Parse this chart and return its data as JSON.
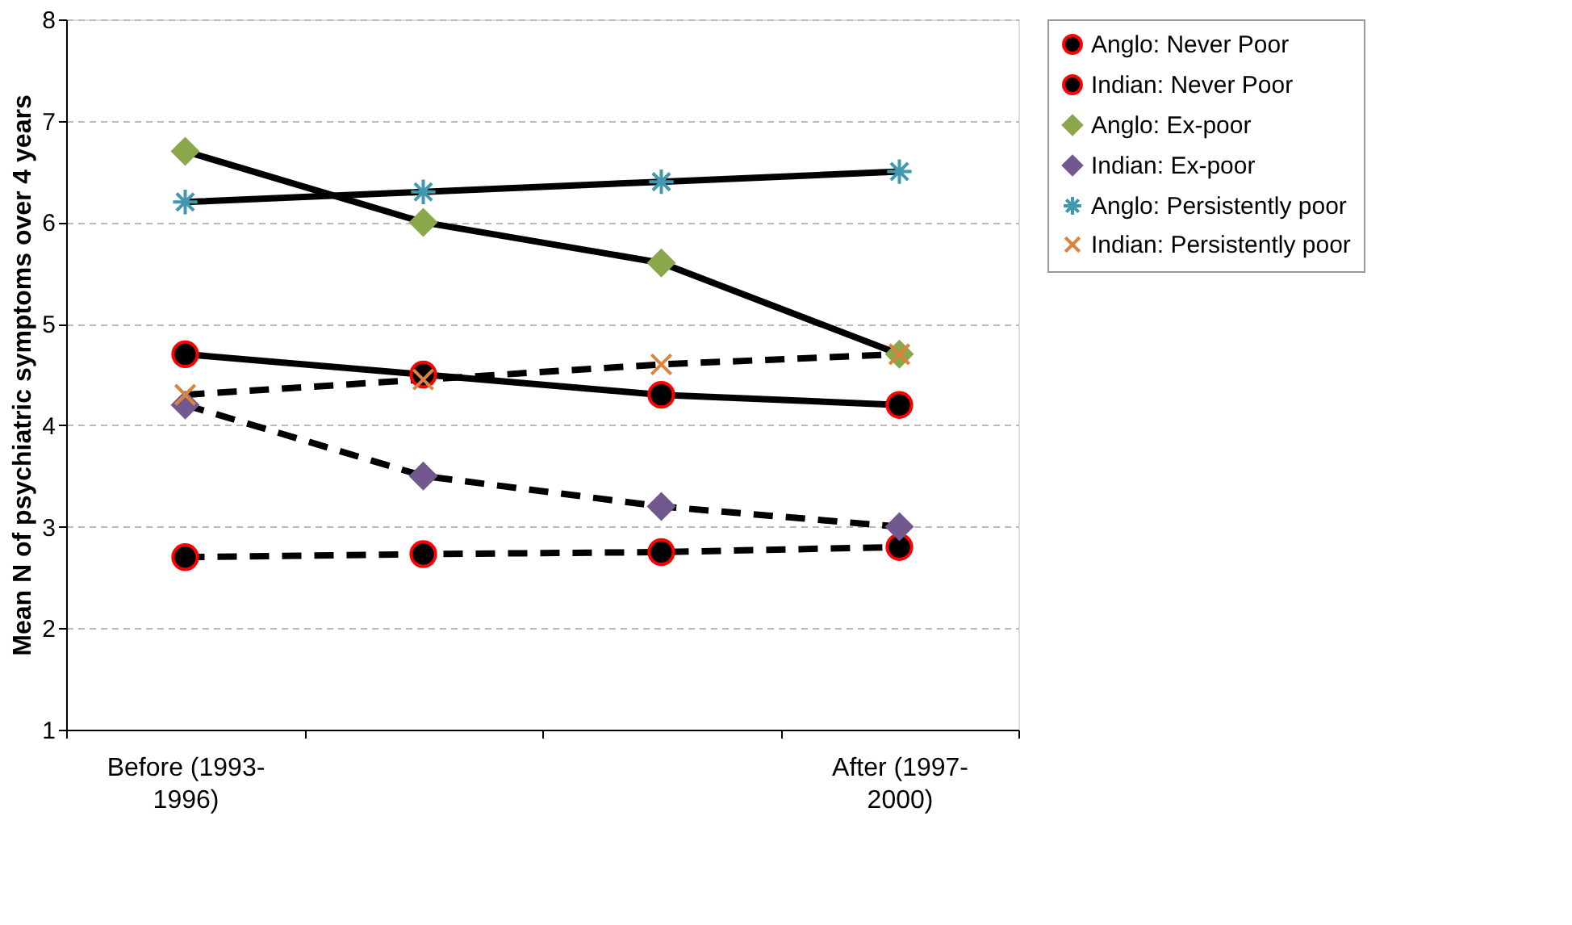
{
  "chart_data": {
    "type": "line",
    "ylabel": "Mean N of psychiatric symptoms over 4 years",
    "categories": [
      "Before (1993-1996)",
      null,
      null,
      "After (1997-2000)"
    ],
    "ylim": [
      1,
      8
    ],
    "yticks": [
      1,
      2,
      3,
      4,
      5,
      6,
      7,
      8
    ],
    "grid": "y",
    "legend": "right",
    "series": [
      {
        "name": "Anglo: Never Poor",
        "color": "#000000",
        "marker": "circle",
        "line_style": "solid",
        "values": [
          4.7,
          4.5,
          4.3,
          4.2
        ]
      },
      {
        "name": "Indian: Never Poor",
        "color": "#000000",
        "marker": "circle",
        "line_style": "dashed",
        "values": [
          2.7,
          2.73,
          2.75,
          2.8
        ]
      },
      {
        "name": "Anglo: Ex-poor",
        "color": "#8aa84b",
        "marker": "diamond",
        "line_style": "solid",
        "values": [
          6.7,
          6.0,
          5.6,
          4.7
        ]
      },
      {
        "name": "Indian: Ex-poor",
        "color": "#71588f",
        "marker": "diamond",
        "line_style": "dashed",
        "values": [
          4.2,
          3.5,
          3.2,
          3.0
        ]
      },
      {
        "name": "Anglo: Persistently poor",
        "color": "#4198af",
        "marker": "cross",
        "line_style": "solid",
        "values": [
          6.2,
          6.3,
          6.4,
          6.5
        ]
      },
      {
        "name": "Indian: Persistently poor",
        "color": "#db843d",
        "marker": "cross",
        "line_style": "dashed",
        "values": [
          4.3,
          4.45,
          4.6,
          4.7
        ]
      }
    ]
  }
}
